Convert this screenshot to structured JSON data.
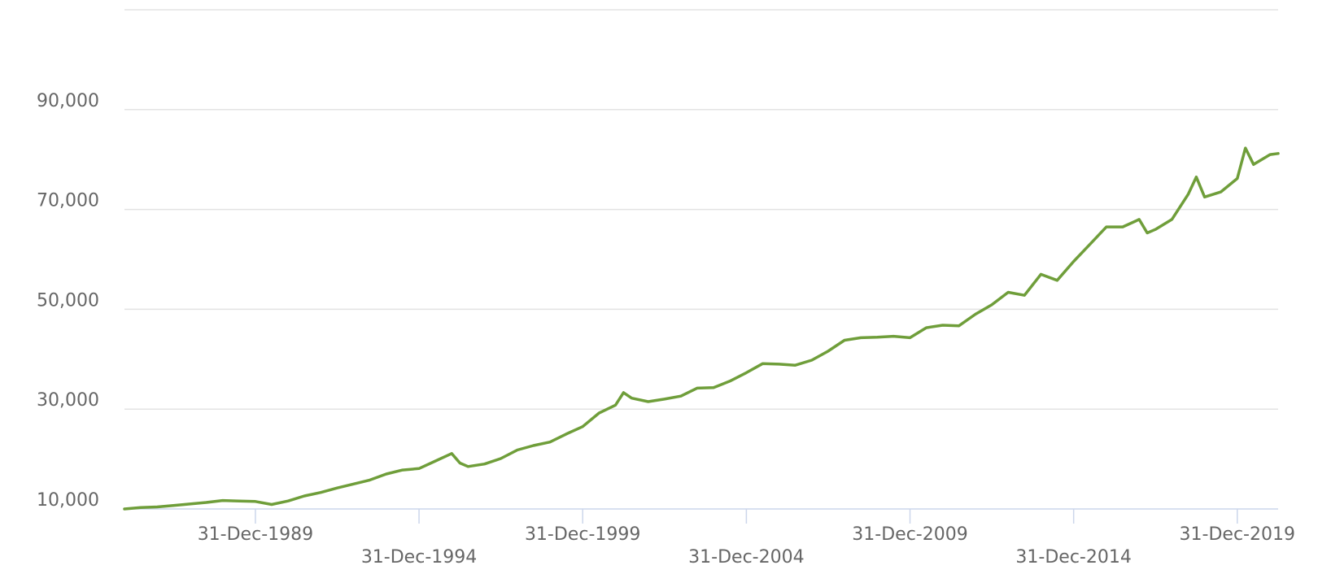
{
  "chart_data": {
    "type": "line",
    "title": "",
    "xlabel": "",
    "ylabel": "",
    "grid": true,
    "legend": "none",
    "xlim": [
      "1985-12-31",
      "2021-03-31"
    ],
    "ylim": [
      10000,
      110000
    ],
    "y_ticks": [
      {
        "value": 10000,
        "label": "10,000"
      },
      {
        "value": 30000,
        "label": "30,000"
      },
      {
        "value": 50000,
        "label": "50,000"
      },
      {
        "value": 70000,
        "label": "70,000"
      },
      {
        "value": 90000,
        "label": "90,000"
      }
    ],
    "x_ticks": [
      {
        "value": "1989-12-31",
        "label": "31-Dec-1989"
      },
      {
        "value": "1994-12-31",
        "label": "31-Dec-1994"
      },
      {
        "value": "1999-12-31",
        "label": "31-Dec-1999"
      },
      {
        "value": "2004-12-31",
        "label": "31-Dec-2004"
      },
      {
        "value": "2009-12-31",
        "label": "31-Dec-2009"
      },
      {
        "value": "2014-12-31",
        "label": "31-Dec-2014"
      },
      {
        "value": "2019-12-31",
        "label": "31-Dec-2019"
      }
    ],
    "series": [
      {
        "color": "#6f9e3a",
        "points": [
          [
            "1985-12-31",
            10000
          ],
          [
            "1986-06-30",
            10300
          ],
          [
            "1986-12-31",
            10400
          ],
          [
            "1987-06-30",
            10700
          ],
          [
            "1987-12-31",
            11000
          ],
          [
            "1988-06-30",
            11300
          ],
          [
            "1988-12-31",
            11700
          ],
          [
            "1989-06-30",
            11600
          ],
          [
            "1989-12-31",
            11500
          ],
          [
            "1990-06-30",
            10900
          ],
          [
            "1990-12-31",
            11600
          ],
          [
            "1991-06-30",
            12600
          ],
          [
            "1991-12-31",
            13300
          ],
          [
            "1992-06-30",
            14200
          ],
          [
            "1992-12-31",
            15000
          ],
          [
            "1993-06-30",
            15800
          ],
          [
            "1993-12-31",
            17000
          ],
          [
            "1994-06-30",
            17800
          ],
          [
            "1994-12-31",
            18100
          ],
          [
            "1995-06-30",
            19600
          ],
          [
            "1995-12-31",
            21100
          ],
          [
            "1996-03-31",
            19200
          ],
          [
            "1996-06-30",
            18500
          ],
          [
            "1996-12-31",
            19000
          ],
          [
            "1997-06-30",
            20100
          ],
          [
            "1997-12-31",
            21800
          ],
          [
            "1998-06-30",
            22700
          ],
          [
            "1998-12-31",
            23400
          ],
          [
            "1999-06-30",
            25000
          ],
          [
            "1999-12-31",
            26500
          ],
          [
            "2000-06-30",
            29200
          ],
          [
            "2000-12-31",
            30800
          ],
          [
            "2001-03-31",
            33300
          ],
          [
            "2001-06-30",
            32200
          ],
          [
            "2001-12-31",
            31500
          ],
          [
            "2002-06-30",
            32000
          ],
          [
            "2002-12-31",
            32600
          ],
          [
            "2003-06-30",
            34200
          ],
          [
            "2003-12-31",
            34300
          ],
          [
            "2004-06-30",
            35600
          ],
          [
            "2004-12-31",
            37300
          ],
          [
            "2005-06-30",
            39100
          ],
          [
            "2005-12-31",
            39000
          ],
          [
            "2006-06-30",
            38800
          ],
          [
            "2006-12-31",
            39800
          ],
          [
            "2007-06-30",
            41600
          ],
          [
            "2007-12-31",
            43800
          ],
          [
            "2008-06-30",
            44300
          ],
          [
            "2008-12-31",
            44400
          ],
          [
            "2009-06-30",
            44600
          ],
          [
            "2009-12-31",
            44300
          ],
          [
            "2010-06-30",
            46300
          ],
          [
            "2010-12-31",
            46800
          ],
          [
            "2011-06-30",
            46700
          ],
          [
            "2011-12-31",
            49000
          ],
          [
            "2012-06-30",
            50900
          ],
          [
            "2012-12-31",
            53400
          ],
          [
            "2013-06-30",
            52800
          ],
          [
            "2013-12-31",
            57000
          ],
          [
            "2014-06-30",
            55800
          ],
          [
            "2014-12-31",
            59600
          ],
          [
            "2015-06-30",
            63000
          ],
          [
            "2015-12-31",
            66500
          ],
          [
            "2016-06-30",
            66500
          ],
          [
            "2016-12-31",
            68000
          ],
          [
            "2017-03-31",
            65300
          ],
          [
            "2017-06-30",
            66000
          ],
          [
            "2017-12-31",
            68000
          ],
          [
            "2018-06-30",
            73000
          ],
          [
            "2018-09-30",
            76500
          ],
          [
            "2018-12-31",
            72500
          ],
          [
            "2019-06-30",
            73500
          ],
          [
            "2019-12-31",
            76200
          ],
          [
            "2020-03-31",
            82300
          ],
          [
            "2020-06-30",
            79000
          ],
          [
            "2020-12-31",
            81000
          ],
          [
            "2021-03-31",
            81200
          ]
        ]
      }
    ]
  }
}
